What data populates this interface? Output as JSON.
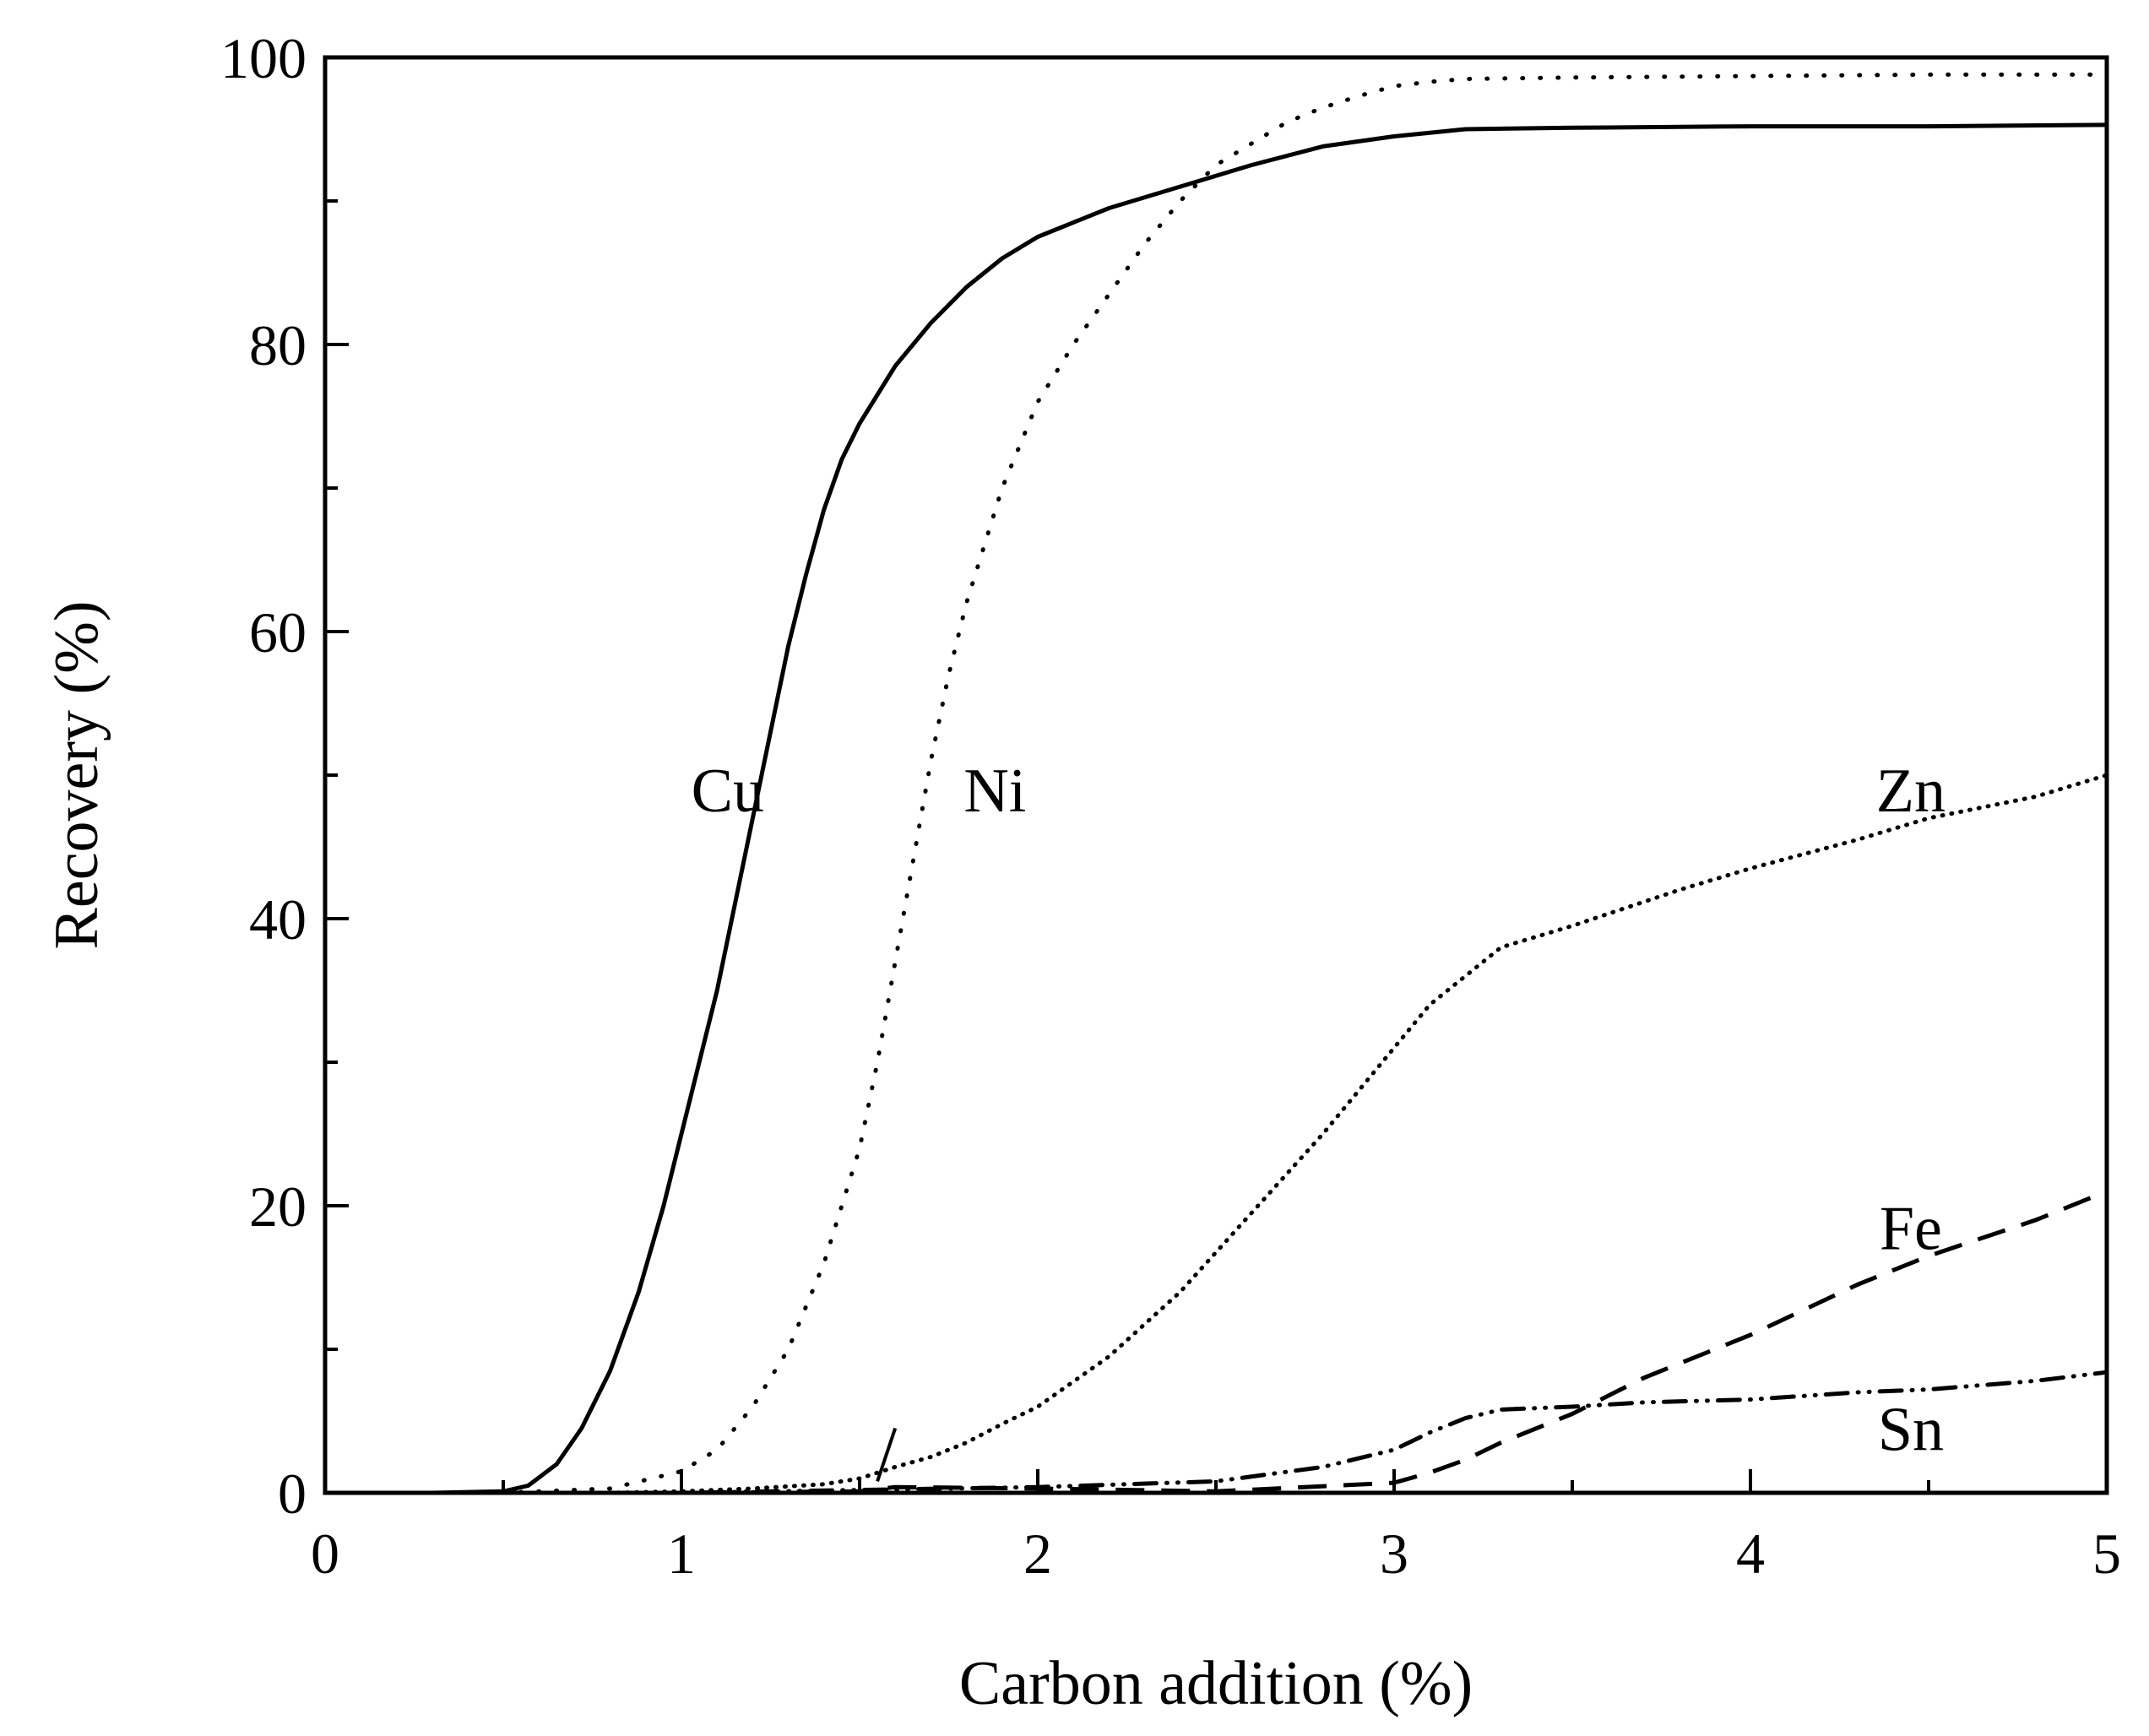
{
  "chart_data": {
    "type": "line",
    "title": "",
    "xlabel": "Carbon addition (%)",
    "ylabel": "Recovery (%)",
    "xlim": [
      0,
      5
    ],
    "ylim": [
      0,
      100
    ],
    "xticks": [
      0,
      1,
      2,
      3,
      4,
      5
    ],
    "xtick_labels": [
      "0",
      "1",
      "2",
      "3",
      "4",
      "5"
    ],
    "yticks": [
      0,
      20,
      40,
      60,
      80,
      100
    ],
    "ytick_labels": [
      "0",
      "20",
      "40",
      "60",
      "80",
      "100"
    ],
    "grid": false,
    "legend": "inline labels",
    "series": [
      {
        "name": "Cu",
        "style": "solid",
        "color": "#000000",
        "x": [
          0.3,
          0.5,
          0.57,
          0.65,
          0.72,
          0.8,
          0.88,
          0.95,
          1.0,
          1.05,
          1.1,
          1.15,
          1.2,
          1.25,
          1.3,
          1.35,
          1.4,
          1.45,
          1.5,
          1.6,
          1.7,
          1.8,
          1.9,
          2.0,
          2.2,
          2.4,
          2.6,
          2.8,
          3.0,
          3.2,
          3.5,
          4.0,
          4.5,
          5.0
        ],
        "y": [
          0,
          0.1,
          0.5,
          2,
          4.5,
          8.5,
          14,
          20,
          25,
          30,
          35,
          41,
          47,
          53,
          59,
          64,
          68.5,
          72,
          74.5,
          78.5,
          81.5,
          84,
          86,
          87.5,
          89.5,
          91,
          92.5,
          93.8,
          94.5,
          95,
          95.1,
          95.2,
          95.2,
          95.3
        ]
      },
      {
        "name": "Ni",
        "style": "dotted",
        "color": "#000000",
        "x": [
          0.3,
          0.5,
          0.8,
          1.0,
          1.1,
          1.2,
          1.3,
          1.4,
          1.5,
          1.55,
          1.6,
          1.65,
          1.7,
          1.75,
          1.8,
          1.9,
          2.0,
          2.1,
          2.2,
          2.3,
          2.4,
          2.5,
          2.6,
          2.7,
          2.8,
          2.9,
          3.0,
          3.1,
          3.2,
          3.5,
          4.0,
          4.5,
          5.0
        ],
        "y": [
          0,
          0,
          0.3,
          1.5,
          3,
          6,
          10,
          16,
          24,
          30,
          37,
          44,
          51,
          57,
          62,
          70,
          76,
          80,
          83.5,
          87,
          90,
          92.5,
          94,
          95.5,
          96.5,
          97.3,
          98,
          98.3,
          98.5,
          98.6,
          98.7,
          98.8,
          98.8
        ]
      },
      {
        "name": "Zn",
        "style": "dense-dotted",
        "color": "#000000",
        "x": [
          0.3,
          0.8,
          1.0,
          1.2,
          1.4,
          1.5,
          1.6,
          1.7,
          1.8,
          1.9,
          2.0,
          2.2,
          2.4,
          2.6,
          2.8,
          3.0,
          3.1,
          3.2,
          3.3,
          3.5,
          3.8,
          4.0,
          4.3,
          4.5,
          4.8,
          5.0
        ],
        "y": [
          0,
          0,
          0.1,
          0.3,
          0.6,
          1.0,
          1.8,
          2.5,
          3.5,
          4.8,
          6,
          9.5,
          14,
          19.5,
          25,
          31,
          34,
          36,
          38,
          39.5,
          42,
          43.5,
          45.5,
          47,
          48.5,
          50
        ]
      },
      {
        "name": "Fe",
        "style": "dashed",
        "color": "#000000",
        "x": [
          0.3,
          1.0,
          1.5,
          1.6,
          2.0,
          2.5,
          3.0,
          3.1,
          3.2,
          3.3,
          3.5,
          3.7,
          4.0,
          4.3,
          4.5,
          4.8,
          5.0
        ],
        "y": [
          0,
          0,
          0.1,
          0.4,
          0.3,
          0.1,
          0.7,
          1.4,
          2.3,
          3.5,
          5.5,
          8,
          11,
          14.5,
          16.5,
          19,
          21
        ]
      },
      {
        "name": "Sn",
        "style": "dash-dot-dot",
        "color": "#000000",
        "x": [
          0.3,
          1.0,
          1.5,
          2.0,
          2.5,
          2.8,
          3.0,
          3.1,
          3.2,
          3.3,
          3.5,
          3.7,
          4.0,
          4.3,
          4.5,
          4.8,
          5.0
        ],
        "y": [
          0,
          0,
          0.2,
          0.4,
          0.8,
          1.8,
          3,
          4.2,
          5.2,
          5.8,
          6,
          6.3,
          6.5,
          7,
          7.2,
          7.8,
          8.4
        ]
      }
    ],
    "annotations": [
      {
        "text": "Cu",
        "x": 1.13,
        "y": 49
      },
      {
        "text": "Ni",
        "x": 1.88,
        "y": 49
      },
      {
        "text": "Zn",
        "x": 4.45,
        "y": 49
      },
      {
        "text": "Fe",
        "x": 4.45,
        "y": 18.5
      },
      {
        "text": "Sn",
        "x": 4.45,
        "y": 4.5
      }
    ],
    "small_mark": {
      "x1": 1.55,
      "y1": 0.8,
      "x2": 1.6,
      "y2": 4.5
    }
  }
}
